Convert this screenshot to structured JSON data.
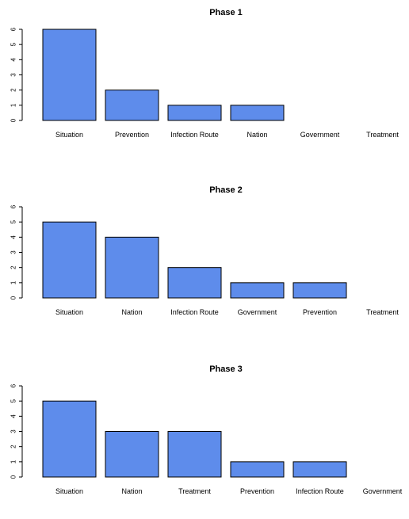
{
  "chart_data": [
    {
      "type": "bar",
      "title": "Phase 1",
      "categories": [
        "Situation",
        "Prevention",
        "Infection Route",
        "Nation",
        "Government",
        "Treatment"
      ],
      "values": [
        6,
        2,
        1,
        1,
        0,
        0
      ],
      "ylim": [
        0,
        6
      ],
      "yticks": [
        0,
        1,
        2,
        3,
        4,
        5,
        6
      ],
      "xlabel": "",
      "ylabel": "",
      "bar_color": "#5e8ceb",
      "grid": false
    },
    {
      "type": "bar",
      "title": "Phase 2",
      "categories": [
        "Situation",
        "Nation",
        "Infection Route",
        "Government",
        "Prevention",
        "Treatment"
      ],
      "values": [
        5,
        4,
        2,
        1,
        1,
        0
      ],
      "ylim": [
        0,
        6
      ],
      "yticks": [
        0,
        1,
        2,
        3,
        4,
        5,
        6
      ],
      "xlabel": "",
      "ylabel": "",
      "bar_color": "#5e8ceb",
      "grid": false
    },
    {
      "type": "bar",
      "title": "Phase 3",
      "categories": [
        "Situation",
        "Nation",
        "Treatment",
        "Prevention",
        "Infection Route",
        "Government"
      ],
      "values": [
        5,
        3,
        3,
        1,
        1,
        0
      ],
      "ylim": [
        0,
        6
      ],
      "yticks": [
        0,
        1,
        2,
        3,
        4,
        5,
        6
      ],
      "xlabel": "",
      "ylabel": "",
      "bar_color": "#5e8ceb",
      "grid": false
    }
  ]
}
